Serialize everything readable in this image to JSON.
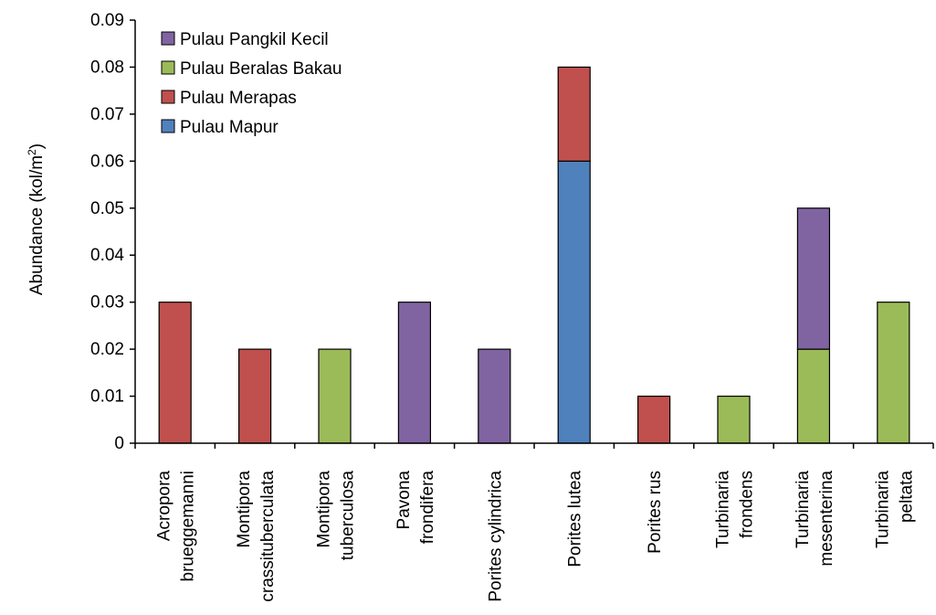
{
  "chart_data": {
    "type": "bar",
    "stacked": true,
    "ylabel": "Abundance (kol/m",
    "ylabel_sup": "2",
    "ylabel_tail": ")",
    "ylim": [
      0,
      0.09
    ],
    "yticks": [
      "0",
      "0.01",
      "0.02",
      "0.03",
      "0.04",
      "0.05",
      "0.06",
      "0.07",
      "0.08",
      "0.09"
    ],
    "grid": false,
    "legend_position": "top-left",
    "categories": [
      [
        "Acropora",
        "brueggemanni"
      ],
      [
        "Montipora",
        "crassituberculata"
      ],
      [
        "Montipora",
        "tuberculosa"
      ],
      [
        "Pavona",
        "frondifera"
      ],
      [
        "Porites cylindrica"
      ],
      [
        "Porites lutea"
      ],
      [
        "Porites rus"
      ],
      [
        "Turbinaria",
        "frondens"
      ],
      [
        "Turbinaria",
        "mesenterina"
      ],
      [
        "Turbinaria",
        "peltata"
      ]
    ],
    "series": [
      {
        "name": "Pulau Mapur",
        "color": "#4F81BD",
        "values": [
          0,
          0,
          0,
          0,
          0,
          0.06,
          0,
          0,
          0,
          0
        ]
      },
      {
        "name": "Pulau Merapas",
        "color": "#C0504D",
        "values": [
          0.03,
          0.02,
          0,
          0,
          0,
          0.02,
          0.01,
          0,
          0,
          0
        ]
      },
      {
        "name": "Pulau Beralas Bakau",
        "color": "#9BBB59",
        "values": [
          0,
          0,
          0.02,
          0,
          0,
          0,
          0,
          0.01,
          0.02,
          0.03
        ]
      },
      {
        "name": "Pulau Pangkil Kecil",
        "color": "#8064A2",
        "values": [
          0,
          0,
          0,
          0.03,
          0.02,
          0,
          0,
          0,
          0.03,
          0
        ]
      }
    ],
    "legend_order": [
      "Pulau Pangkil Kecil",
      "Pulau Beralas Bakau",
      "Pulau Merapas",
      "Pulau Mapur"
    ]
  }
}
